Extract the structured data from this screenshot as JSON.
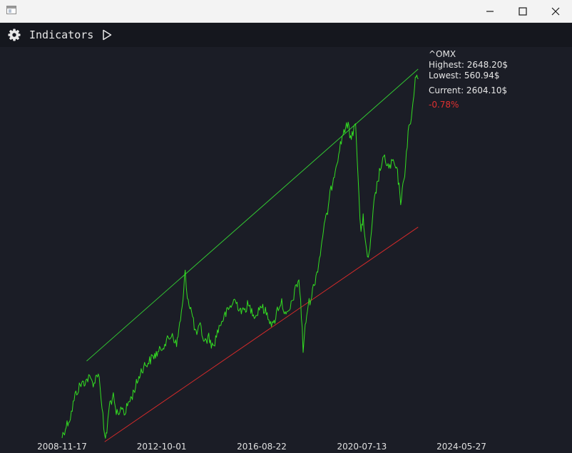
{
  "window": {
    "icons": {
      "app": "app-window-icon",
      "minimize": "minimize-icon",
      "maximize": "maximize-icon",
      "close": "close-icon"
    }
  },
  "toolbar": {
    "indicators_label": "Indicators",
    "icons": {
      "settings": "gear-icon",
      "run": "play-icon"
    }
  },
  "info": {
    "symbol": "^OMX",
    "highest": "Highest: 2648.20$",
    "lowest": "Lowest: 560.94$",
    "current": "Current: 2604.10$",
    "change": "-0.78%"
  },
  "colors": {
    "background": "#1b1d26",
    "toolbar": "#15171e",
    "price_line": "#33dd22",
    "upper_trend": "#32c832",
    "lower_trend": "#d42a2a",
    "change_negative": "#e03030",
    "text": "#e6e6e6"
  },
  "chart_data": {
    "type": "line",
    "x_tick_labels": [
      "2008-11-17",
      "2012-10-01",
      "2016-08-22",
      "2020-07-13",
      "2024-05-27"
    ],
    "x_range": [
      "2008-11-17",
      "2024-05-27"
    ],
    "y_range": [
      560.94,
      2648.2
    ],
    "grid": false,
    "series": [
      {
        "points": [
          [
            "2008-11-17",
            590
          ],
          [
            "2009-01-15",
            650
          ],
          [
            "2009-03-15",
            700
          ],
          [
            "2009-05-20",
            820
          ],
          [
            "2009-08-01",
            880
          ],
          [
            "2009-10-10",
            900
          ],
          [
            "2009-12-01",
            920
          ],
          [
            "2010-02-15",
            890
          ],
          [
            "2010-04-15",
            960
          ],
          [
            "2010-05-25",
            820
          ],
          [
            "2010-06-20",
            700
          ],
          [
            "2010-07-15",
            575
          ],
          [
            "2010-08-15",
            620
          ],
          [
            "2010-09-25",
            780
          ],
          [
            "2010-11-15",
            810
          ],
          [
            "2010-12-15",
            730
          ],
          [
            "2011-02-01",
            700
          ],
          [
            "2011-03-15",
            760
          ],
          [
            "2011-05-01",
            720
          ],
          [
            "2011-06-15",
            780
          ],
          [
            "2011-08-01",
            810
          ],
          [
            "2011-09-15",
            860
          ],
          [
            "2011-11-01",
            910
          ],
          [
            "2011-12-15",
            960
          ],
          [
            "2012-02-01",
            990
          ],
          [
            "2012-04-01",
            1010
          ],
          [
            "2012-06-01",
            1040
          ],
          [
            "2012-09-01",
            1070
          ],
          [
            "2012-11-01",
            1110
          ],
          [
            "2013-01-15",
            1140
          ],
          [
            "2013-03-01",
            1170
          ],
          [
            "2013-05-01",
            1100
          ],
          [
            "2013-06-01",
            1190
          ],
          [
            "2013-08-01",
            1350
          ],
          [
            "2013-09-01",
            1530
          ],
          [
            "2013-10-01",
            1380
          ],
          [
            "2013-12-01",
            1290
          ],
          [
            "2014-02-01",
            1160
          ],
          [
            "2014-04-01",
            1210
          ],
          [
            "2014-06-01",
            1120
          ],
          [
            "2014-08-01",
            1150
          ],
          [
            "2014-10-01",
            1090
          ],
          [
            "2014-12-01",
            1180
          ],
          [
            "2015-02-01",
            1240
          ],
          [
            "2015-04-01",
            1280
          ],
          [
            "2015-06-01",
            1320
          ],
          [
            "2015-08-01",
            1360
          ],
          [
            "2015-10-01",
            1320
          ],
          [
            "2015-12-01",
            1290
          ],
          [
            "2016-02-01",
            1330
          ],
          [
            "2016-04-01",
            1300
          ],
          [
            "2016-06-01",
            1270
          ],
          [
            "2016-08-01",
            1330
          ],
          [
            "2016-10-01",
            1300
          ],
          [
            "2016-12-01",
            1260
          ],
          [
            "2017-02-01",
            1210
          ],
          [
            "2017-04-01",
            1310
          ],
          [
            "2017-06-01",
            1350
          ],
          [
            "2017-08-01",
            1260
          ],
          [
            "2017-10-01",
            1310
          ],
          [
            "2017-12-01",
            1400
          ],
          [
            "2018-02-01",
            1480
          ],
          [
            "2018-03-20",
            1200
          ],
          [
            "2018-04-01",
            1070
          ],
          [
            "2018-05-01",
            1200
          ],
          [
            "2018-06-01",
            1310
          ],
          [
            "2018-08-01",
            1390
          ],
          [
            "2018-10-01",
            1490
          ],
          [
            "2018-12-01",
            1620
          ],
          [
            "2019-01-15",
            1760
          ],
          [
            "2019-03-01",
            1830
          ],
          [
            "2019-05-01",
            1980
          ],
          [
            "2019-07-01",
            2100
          ],
          [
            "2019-09-01",
            2210
          ],
          [
            "2019-11-01",
            2320
          ],
          [
            "2020-01-01",
            2340
          ],
          [
            "2020-02-15",
            2260
          ],
          [
            "2020-04-15",
            2380
          ],
          [
            "2020-06-01",
            1940
          ],
          [
            "2020-07-01",
            1720
          ],
          [
            "2020-08-01",
            1840
          ],
          [
            "2020-09-01",
            1680
          ],
          [
            "2020-10-01",
            1580
          ],
          [
            "2020-11-15",
            1680
          ],
          [
            "2021-01-01",
            1900
          ],
          [
            "2021-02-01",
            1980
          ],
          [
            "2021-04-01",
            2100
          ],
          [
            "2021-06-01",
            2160
          ],
          [
            "2021-08-01",
            2100
          ],
          [
            "2021-10-01",
            2140
          ],
          [
            "2021-12-01",
            2070
          ],
          [
            "2022-01-15",
            1920
          ],
          [
            "2022-03-01",
            2020
          ],
          [
            "2022-05-01",
            2300
          ],
          [
            "2022-06-15",
            2380
          ],
          [
            "2022-08-01",
            2560
          ],
          [
            "2022-09-01",
            2648.2
          ],
          [
            "2022-09-20",
            2604.1
          ]
        ]
      }
    ],
    "trendlines": [
      {
        "name": "upper",
        "from": [
          "2009-11-01",
          1015
        ],
        "to": [
          "2022-09-20",
          2660
        ]
      },
      {
        "name": "lower",
        "from": [
          "2010-07-15",
          560
        ],
        "to": [
          "2022-09-20",
          1770
        ]
      }
    ]
  }
}
